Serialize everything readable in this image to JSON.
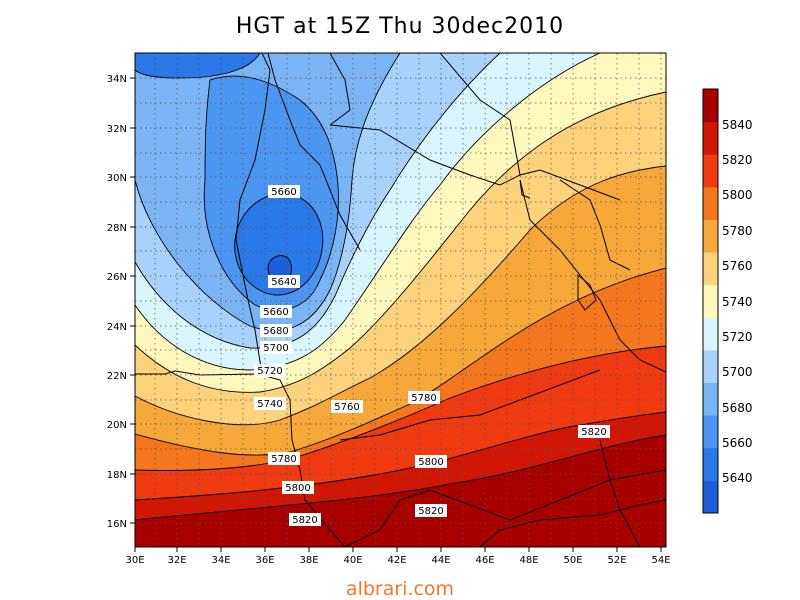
{
  "title": "HGT at 15Z Thu 30dec2010",
  "footer": "albrari.com",
  "map": {
    "x_ticks": [
      "30E",
      "32E",
      "34E",
      "36E",
      "38E",
      "40E",
      "42E",
      "44E",
      "46E",
      "48E",
      "50E",
      "52E",
      "54E"
    ],
    "y_ticks": [
      "34N",
      "32N",
      "30N",
      "28N",
      "26N",
      "24N",
      "22N",
      "20N",
      "18N",
      "16N"
    ],
    "contour_labels": [
      "5660",
      "5640",
      "5660",
      "5680",
      "5700",
      "5720",
      "5740",
      "5760",
      "5780",
      "5780",
      "5800",
      "5800",
      "5820",
      "5820",
      "5820"
    ]
  },
  "colorbar": {
    "levels": [
      "5640",
      "5660",
      "5680",
      "5700",
      "5720",
      "5740",
      "5760",
      "5780",
      "5800",
      "5820",
      "5840"
    ],
    "colors": [
      "#1d5fd8",
      "#2b78e8",
      "#4c95f0",
      "#7bb4f4",
      "#a8d2fa",
      "#d8f6fc",
      "#fff7bc",
      "#fdd27c",
      "#f7a83a",
      "#f4771f",
      "#ef3a12",
      "#d21606",
      "#a80000"
    ]
  }
}
